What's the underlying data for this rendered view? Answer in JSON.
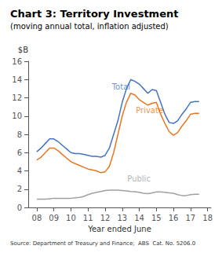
{
  "chart_data": {
    "type": "line",
    "title": "Chart 3: Territory Investment",
    "subtitle": "(moving annual total, inflation adjusted)",
    "source": "Source: Department of Treasury and Finance;  ABS  Cat. No. 5206.0",
    "xlabel": "Year ended June",
    "ylabel": "$B",
    "xlim": [
      7.5,
      18.2
    ],
    "xticks": [
      {
        "value": 8,
        "label": "08"
      },
      {
        "value": 9,
        "label": "09"
      },
      10,
      11,
      12,
      13,
      14,
      15,
      16,
      17,
      18
    ],
    "ylim": [
      0,
      16
    ],
    "yticks": [
      0,
      2,
      4,
      6,
      8,
      10,
      12,
      14,
      16
    ],
    "grid": false,
    "x": [
      8.0,
      8.25,
      8.5,
      8.75,
      9.0,
      9.25,
      9.5,
      9.75,
      10.0,
      10.25,
      10.5,
      10.75,
      11.0,
      11.25,
      11.5,
      11.75,
      12.0,
      12.25,
      12.5,
      12.75,
      13.0,
      13.25,
      13.5,
      13.75,
      14.0,
      14.25,
      14.5,
      14.75,
      15.0,
      15.25,
      15.5,
      15.75,
      16.0,
      16.25,
      16.5,
      16.75,
      17.0,
      17.25,
      17.5
    ],
    "series": [
      {
        "name": "Total",
        "color": "#4472C4",
        "values": [
          6.1,
          6.5,
          7.0,
          7.5,
          7.5,
          7.2,
          6.8,
          6.4,
          6.0,
          5.9,
          5.9,
          5.8,
          5.7,
          5.6,
          5.6,
          5.5,
          5.7,
          6.5,
          8.0,
          9.5,
          11.5,
          13.0,
          14.0,
          13.8,
          13.5,
          13.0,
          12.5,
          12.9,
          12.8,
          11.5,
          10.2,
          9.3,
          9.2,
          9.5,
          10.2,
          10.8,
          11.5,
          11.6,
          11.6
        ]
      },
      {
        "name": "Private",
        "color": "#E87722",
        "values": [
          5.2,
          5.5,
          6.0,
          6.5,
          6.5,
          6.2,
          5.8,
          5.4,
          5.0,
          4.8,
          4.6,
          4.4,
          4.2,
          4.1,
          4.0,
          3.8,
          3.9,
          4.5,
          6.0,
          8.0,
          10.0,
          11.5,
          12.5,
          12.3,
          11.8,
          11.5,
          11.2,
          11.4,
          11.5,
          10.2,
          9.2,
          8.3,
          7.9,
          8.2,
          8.9,
          9.5,
          10.2,
          10.3,
          10.3
        ]
      },
      {
        "name": "Public",
        "color": "#A0A0A0",
        "values": [
          0.9,
          0.9,
          0.9,
          0.95,
          1.0,
          1.0,
          1.0,
          1.0,
          1.0,
          1.05,
          1.1,
          1.2,
          1.4,
          1.55,
          1.65,
          1.75,
          1.85,
          1.9,
          1.9,
          1.9,
          1.85,
          1.8,
          1.75,
          1.72,
          1.65,
          1.55,
          1.5,
          1.6,
          1.7,
          1.7,
          1.65,
          1.6,
          1.55,
          1.4,
          1.3,
          1.3,
          1.4,
          1.45,
          1.45
        ]
      }
    ],
    "annotations": [
      {
        "text": "Total",
        "x": 12.4,
        "y": 12.8,
        "color": "#4472C4"
      },
      {
        "text": "Private",
        "x": 13.8,
        "y": 10.2,
        "color": "#E87722"
      },
      {
        "text": "Public",
        "x": 13.3,
        "y": 2.7,
        "color": "#A0A0A0"
      }
    ]
  }
}
